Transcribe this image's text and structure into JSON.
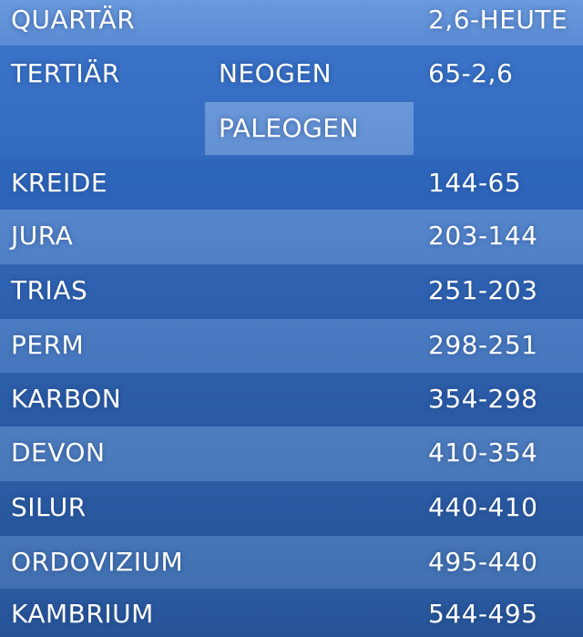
{
  "rows": [
    {
      "era": "QUARTÄR",
      "sub": "",
      "age": "2,6-HEUTE"
    },
    {
      "era": "TERTIÄR",
      "sub": "NEOGEN",
      "sub2": "PALEOGEN",
      "age": "65-2,6"
    },
    {
      "era": "KREIDE",
      "age": "144-65"
    },
    {
      "era": "JURA",
      "age": "203-144"
    },
    {
      "era": "TRIAS",
      "age": "251-203"
    },
    {
      "era": "PERM",
      "age": "298-251"
    },
    {
      "era": "KARBON",
      "age": "354-298"
    },
    {
      "era": "DEVON",
      "age": "410-354"
    },
    {
      "era": "SILUR",
      "age": "440-410"
    },
    {
      "era": "ORDOVIZIUM",
      "age": "495-440"
    },
    {
      "era": "KAMBRIUM",
      "age": "544-495"
    }
  ]
}
